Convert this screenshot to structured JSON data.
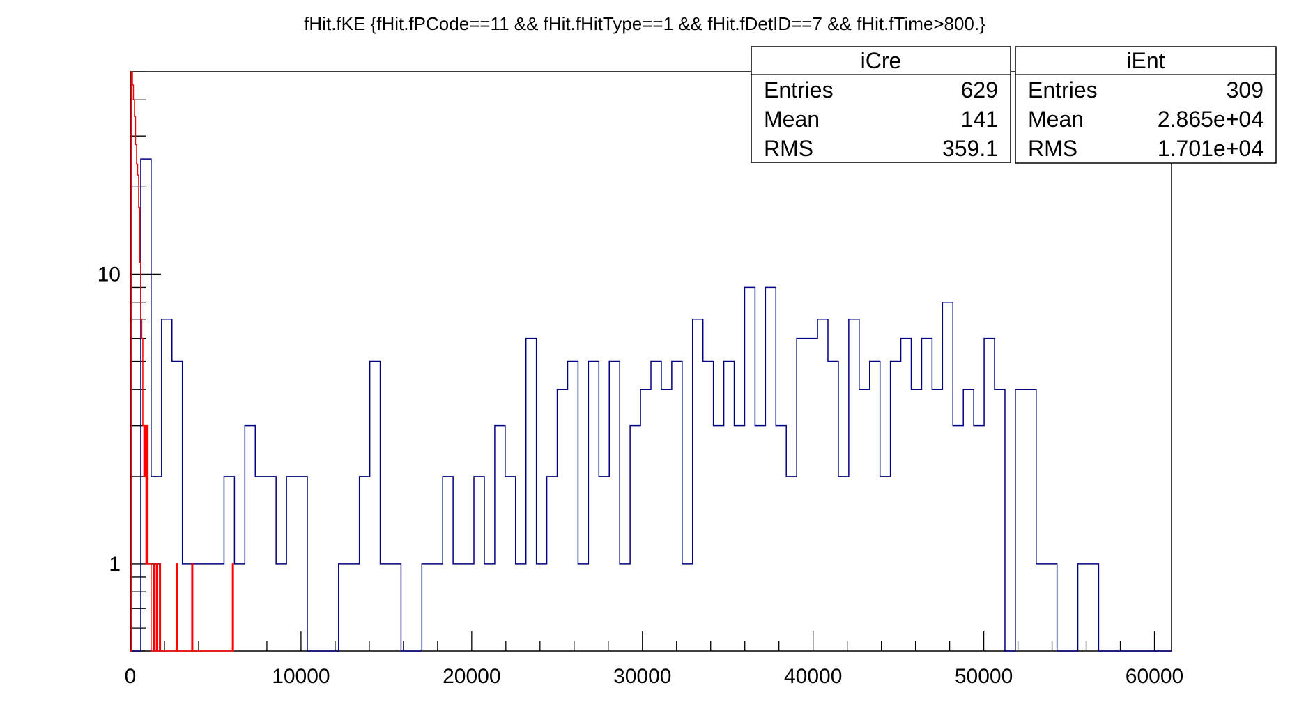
{
  "chart_data": {
    "type": "histogram",
    "title": "fHit.fKE {fHit.fPCode==11 && fHit.fHitType==1 && fHit.fDetID==7 && fHit.fTime>800.}",
    "xlim": [
      0,
      61000
    ],
    "ylim": [
      0.5,
      50
    ],
    "yscale": "log",
    "grid": false,
    "x_ticks": [
      {
        "value": 0,
        "label": "0"
      },
      {
        "value": 10000,
        "label": "10000"
      },
      {
        "value": 20000,
        "label": "20000"
      },
      {
        "value": 30000,
        "label": "30000"
      },
      {
        "value": 40000,
        "label": "40000"
      },
      {
        "value": 50000,
        "label": "50000"
      },
      {
        "value": 60000,
        "label": "60000"
      }
    ],
    "y_ticks": [
      {
        "value": 1,
        "label": "1"
      },
      {
        "value": 10,
        "label": "10"
      }
    ],
    "series": [
      {
        "name": "iEnt",
        "color": "#000080",
        "bin_width": 610,
        "x_start": 0,
        "counts": [
          0,
          25,
          2,
          7,
          5,
          1,
          1,
          1,
          1,
          2,
          1,
          3,
          2,
          2,
          1,
          2,
          2,
          0,
          0,
          0,
          1,
          1,
          2,
          5,
          1,
          1,
          0,
          0,
          1,
          1,
          2,
          1,
          1,
          2,
          1,
          3,
          2,
          1,
          6,
          1,
          2,
          4,
          5,
          1,
          5,
          2,
          5,
          1,
          3,
          4,
          5,
          4,
          5,
          1,
          7,
          5,
          3,
          5,
          3,
          9,
          3,
          9,
          3,
          2,
          6,
          6,
          7,
          5,
          2,
          7,
          4,
          5,
          2,
          5,
          6,
          4,
          6,
          4,
          8,
          3,
          4,
          3,
          6,
          4,
          0,
          4,
          4,
          1,
          1,
          0,
          0,
          1,
          1,
          0,
          0,
          0,
          0,
          0,
          0,
          0
        ]
      },
      {
        "name": "iCre",
        "color": "#ff0000",
        "bin_width": 61,
        "x_start": 0,
        "counts": [
          0,
          50,
          45,
          40,
          35,
          28,
          24,
          22,
          17,
          11,
          7,
          6,
          3,
          2,
          3,
          1,
          3,
          1,
          1,
          1,
          0,
          0,
          1,
          0,
          0,
          1,
          0,
          0,
          1,
          0,
          0,
          0,
          0,
          0,
          0,
          0,
          0,
          0,
          0,
          0,
          0,
          0,
          0,
          0,
          1,
          0,
          0,
          0,
          0,
          0,
          0,
          0,
          0,
          0,
          0,
          0,
          0,
          0,
          0,
          1,
          0,
          0,
          0,
          0,
          0,
          0,
          0,
          0,
          0,
          0,
          0,
          0,
          0,
          0,
          0,
          0,
          0,
          0,
          0,
          0,
          0,
          0,
          0,
          0,
          0,
          0,
          0,
          0,
          0,
          0,
          0,
          0,
          0,
          0,
          0,
          0,
          0,
          0,
          1,
          0
        ]
      }
    ],
    "stats_boxes": [
      {
        "name": "iCre",
        "rows": [
          {
            "label": "Entries",
            "value": "629"
          },
          {
            "label": "Mean",
            "value": "141"
          },
          {
            "label": "RMS",
            "value": "359.1"
          }
        ]
      },
      {
        "name": "iEnt",
        "rows": [
          {
            "label": "Entries",
            "value": "309"
          },
          {
            "label": "Mean",
            "value": "2.865e+04"
          },
          {
            "label": "RMS",
            "value": "1.701e+04"
          }
        ]
      }
    ]
  }
}
